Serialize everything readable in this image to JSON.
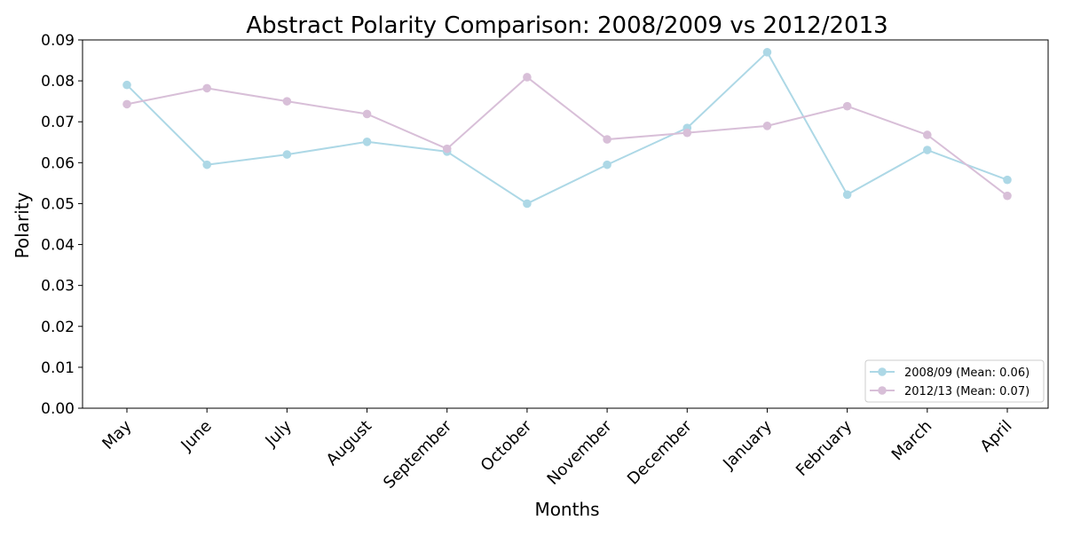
{
  "chart_data": {
    "type": "line",
    "title": "Abstract Polarity Comparison: 2008/2009 vs 2012/2013",
    "xlabel": "Months",
    "ylabel": "Polarity",
    "categories": [
      "May",
      "June",
      "July",
      "August",
      "September",
      "October",
      "November",
      "December",
      "January",
      "February",
      "March",
      "April"
    ],
    "ylim": [
      0,
      0.09
    ],
    "yticks": [
      "0.00",
      "0.01",
      "0.02",
      "0.03",
      "0.04",
      "0.05",
      "0.06",
      "0.07",
      "0.08",
      "0.09"
    ],
    "grid": false,
    "legend_position": "bottom-right",
    "series": [
      {
        "name": "2008/09 (Mean: 0.06)",
        "color": "#add8e6",
        "values": [
          0.079,
          0.0595,
          0.062,
          0.0651,
          0.0627,
          0.05,
          0.0595,
          0.0685,
          0.087,
          0.0522,
          0.0631,
          0.0558
        ]
      },
      {
        "name": "2012/13 (Mean: 0.07)",
        "color": "#d8bfd8",
        "values": [
          0.0743,
          0.0782,
          0.075,
          0.0719,
          0.0634,
          0.0809,
          0.0657,
          0.0673,
          0.069,
          0.0738,
          0.0668,
          0.0519
        ]
      }
    ]
  }
}
